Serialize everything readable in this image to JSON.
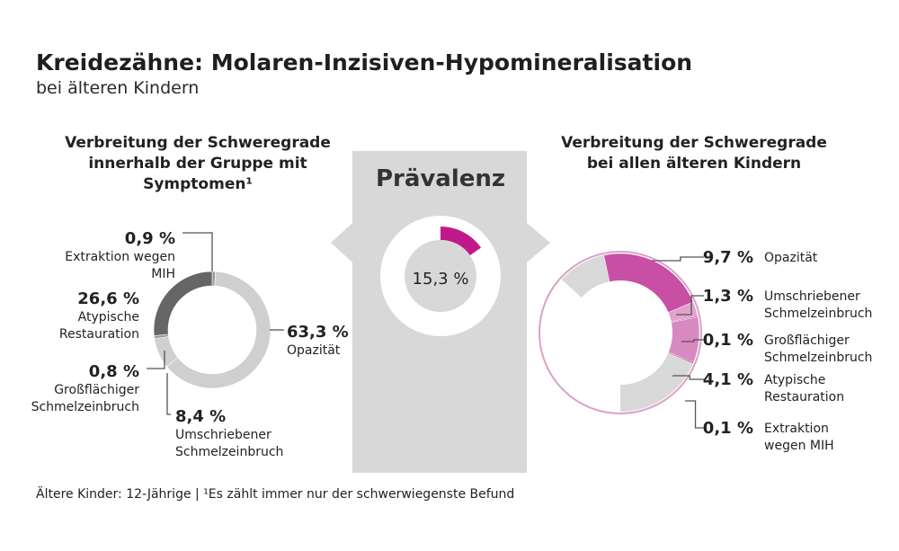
{
  "title": "Kreidezähne: Molaren-Inzisiven-Hypomineralisation",
  "subtitle": "bei älteren Kindern",
  "footnote": "Ältere Kinder: 12-Jährige | ¹Es zählt immer nur der schwerwiegenste Befund",
  "colors": {
    "accent": "#c0198c",
    "dark": "#666666",
    "light": "#cfcfcf",
    "panel": "#d8d8d8"
  },
  "chart_data": [
    {
      "type": "pie",
      "title": "Verbreitung der Schweregrade innerhalb der Gruppe mit Symptomen¹",
      "slices": [
        {
          "value": 0.9,
          "value_label": "0,9 %",
          "label": [
            "Extraktion wegen",
            "MIH"
          ]
        },
        {
          "value": 63.3,
          "value_label": "63,3 %",
          "label": [
            "Opazität"
          ]
        },
        {
          "value": 8.4,
          "value_label": "8,4 %",
          "label": [
            "Umschriebener",
            "Schmelzeinbruch"
          ]
        },
        {
          "value": 0.8,
          "value_label": "0,8 %",
          "label": [
            "Großflächiger",
            "Schmelzeinbruch"
          ]
        },
        {
          "value": 26.6,
          "value_label": "26,6 %",
          "label": [
            "Atypische",
            "Restauration"
          ]
        }
      ]
    },
    {
      "type": "pie",
      "title": "Prävalenz",
      "slices": [
        {
          "value": 15.3,
          "value_label": "15,3 %",
          "label": []
        },
        {
          "value": 84.7,
          "value_label": "",
          "label": []
        }
      ]
    },
    {
      "type": "pie",
      "title": "Verbreitung der Schweregrade bei allen älteren Kindern",
      "slices": [
        {
          "value": 9.7,
          "value_label": "9,7 %",
          "label": [
            "Opazität"
          ]
        },
        {
          "value": 1.3,
          "value_label": "1,3 %",
          "label": [
            "Umschriebener",
            "Schmelzeinbruch"
          ]
        },
        {
          "value": 0.1,
          "value_label": "0,1 %",
          "label": [
            "Großflächiger",
            "Schmelzeinbruch"
          ]
        },
        {
          "value": 4.1,
          "value_label": "4,1 %",
          "label": [
            "Atypische",
            "Restauration"
          ]
        },
        {
          "value": 0.1,
          "value_label": "0,1 %",
          "label": [
            "Extraktion",
            "wegen MIH"
          ]
        }
      ]
    }
  ]
}
